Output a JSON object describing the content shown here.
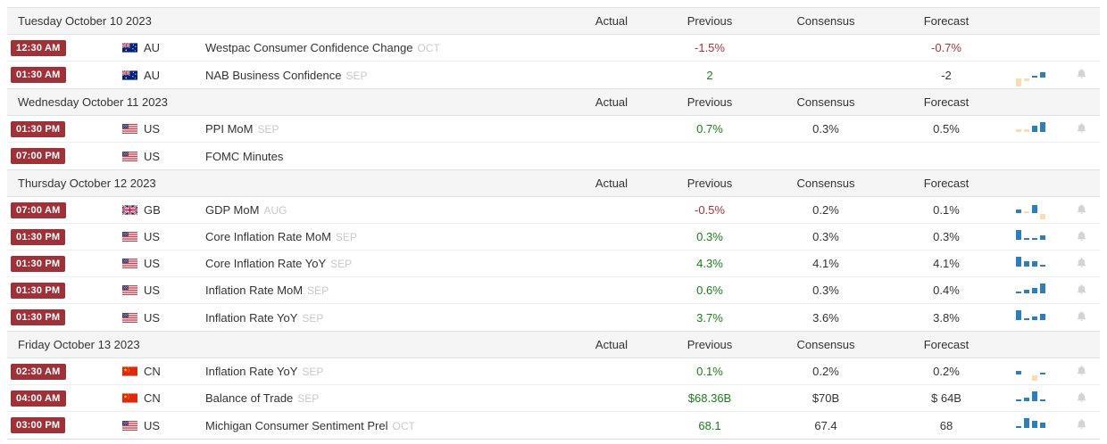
{
  "columns": {
    "actual": "Actual",
    "previous": "Previous",
    "consensus": "Consensus",
    "forecast": "Forecast"
  },
  "colors": {
    "time_badge": "#9e3238",
    "value_positive": "#1a7d1a",
    "value_negative": "#aa3337",
    "spark_blue": "#2d7fb8",
    "spark_orange": "#f8dcb2"
  },
  "icons": {
    "bell": "bell-icon",
    "flags": [
      "au-flag-icon",
      "us-flag-icon",
      "gb-flag-icon",
      "cn-flag-icon"
    ]
  },
  "sections": [
    {
      "date": "Tuesday October 10 2023",
      "rows": [
        {
          "time": "12:30 AM",
          "country": "AU",
          "flag": "au",
          "event": "Westpac Consumer Confidence Change",
          "period": "OCT",
          "actual": "",
          "previous": {
            "text": "-1.5%",
            "tone": "red"
          },
          "consensus": "",
          "forecast": {
            "text": "-0.7%",
            "tone": "red"
          },
          "spark": null,
          "bell": false
        },
        {
          "time": "01:30 AM",
          "country": "AU",
          "flag": "au",
          "event": "NAB Business Confidence",
          "period": "SEP",
          "actual": "",
          "previous": {
            "text": "2",
            "tone": "green"
          },
          "consensus": "",
          "forecast": {
            "text": "-2",
            "tone": "neutral"
          },
          "spark": {
            "bars": [
              {
                "v": -0.8,
                "c": "o"
              },
              {
                "v": -0.3,
                "c": "o"
              },
              {
                "v": 0.12,
                "c": "b"
              },
              {
                "v": 0.5,
                "c": "b"
              }
            ]
          },
          "bell": true
        }
      ]
    },
    {
      "date": "Wednesday October 11 2023",
      "rows": [
        {
          "time": "01:30 PM",
          "country": "US",
          "flag": "us",
          "event": "PPI MoM",
          "period": "SEP",
          "actual": "",
          "previous": {
            "text": "0.7%",
            "tone": "green"
          },
          "consensus": "0.3%",
          "forecast": {
            "text": "0.5%",
            "tone": "neutral"
          },
          "spark": {
            "bars": [
              {
                "v": 0.25,
                "c": "o"
              },
              {
                "v": 0.3,
                "c": "o"
              },
              {
                "v": 0.6,
                "c": "b"
              },
              {
                "v": 1,
                "c": "b"
              }
            ]
          },
          "bell": true
        },
        {
          "time": "07:00 PM",
          "country": "US",
          "flag": "us",
          "event": "FOMC Minutes",
          "period": "",
          "actual": "",
          "previous": {
            "text": "",
            "tone": "neutral"
          },
          "consensus": "",
          "forecast": {
            "text": "",
            "tone": "neutral"
          },
          "spark": null,
          "bell": false
        }
      ]
    },
    {
      "date": "Thursday October 12 2023",
      "rows": [
        {
          "time": "07:00 AM",
          "country": "GB",
          "flag": "gb",
          "event": "GDP MoM",
          "period": "AUG",
          "actual": "",
          "previous": {
            "text": "-0.5%",
            "tone": "red"
          },
          "consensus": "0.2%",
          "forecast": {
            "text": "0.1%",
            "tone": "neutral"
          },
          "spark": {
            "bars": [
              {
                "v": 0.35,
                "c": "b"
              },
              {
                "v": 0.08,
                "c": "o"
              },
              {
                "v": 0.8,
                "c": "b"
              },
              {
                "v": -0.5,
                "c": "o"
              }
            ]
          },
          "bell": true
        },
        {
          "time": "01:30 PM",
          "country": "US",
          "flag": "us",
          "event": "Core Inflation Rate MoM",
          "period": "SEP",
          "actual": "",
          "previous": {
            "text": "0.3%",
            "tone": "green"
          },
          "consensus": "0.3%",
          "forecast": {
            "text": "0.3%",
            "tone": "neutral"
          },
          "spark": {
            "bars": [
              {
                "v": 1,
                "c": "b"
              },
              {
                "v": 0.08,
                "c": "b"
              },
              {
                "v": 0.08,
                "c": "b"
              },
              {
                "v": 0.45,
                "c": "b"
              }
            ]
          },
          "bell": true
        },
        {
          "time": "01:30 PM",
          "country": "US",
          "flag": "us",
          "event": "Core Inflation Rate YoY",
          "period": "SEP",
          "actual": "",
          "previous": {
            "text": "4.3%",
            "tone": "green"
          },
          "consensus": "4.1%",
          "forecast": {
            "text": "4.1%",
            "tone": "neutral"
          },
          "spark": {
            "bars": [
              {
                "v": 1,
                "c": "b"
              },
              {
                "v": 0.55,
                "c": "b"
              },
              {
                "v": 0.5,
                "c": "b"
              },
              {
                "v": 0.08,
                "c": "b"
              }
            ]
          },
          "bell": true
        },
        {
          "time": "01:30 PM",
          "country": "US",
          "flag": "us",
          "event": "Inflation Rate MoM",
          "period": "SEP",
          "actual": "",
          "previous": {
            "text": "0.6%",
            "tone": "green"
          },
          "consensus": "0.3%",
          "forecast": {
            "text": "0.4%",
            "tone": "neutral"
          },
          "spark": {
            "bars": [
              {
                "v": 0.15,
                "c": "b"
              },
              {
                "v": 0.35,
                "c": "b"
              },
              {
                "v": 0.5,
                "c": "b"
              },
              {
                "v": 1,
                "c": "b"
              }
            ]
          },
          "bell": true
        },
        {
          "time": "01:30 PM",
          "country": "US",
          "flag": "us",
          "event": "Inflation Rate YoY",
          "period": "SEP",
          "actual": "",
          "previous": {
            "text": "3.7%",
            "tone": "green"
          },
          "consensus": "3.6%",
          "forecast": {
            "text": "3.8%",
            "tone": "neutral"
          },
          "spark": {
            "bars": [
              {
                "v": 1,
                "c": "b"
              },
              {
                "v": 0.12,
                "c": "b"
              },
              {
                "v": 0.35,
                "c": "b"
              },
              {
                "v": 0.6,
                "c": "b"
              }
            ]
          },
          "bell": true
        }
      ]
    },
    {
      "date": "Friday October 13 2023",
      "rows": [
        {
          "time": "02:30 AM",
          "country": "CN",
          "flag": "cn",
          "event": "Inflation Rate YoY",
          "period": "SEP",
          "actual": "",
          "previous": {
            "text": "0.1%",
            "tone": "green"
          },
          "consensus": "0.2%",
          "forecast": {
            "text": "0.2%",
            "tone": "neutral"
          },
          "spark": {
            "bars": [
              {
                "v": 0.35,
                "c": "b"
              },
              {
                "v": 0,
                "c": "b"
              },
              {
                "v": -0.5,
                "c": "o"
              },
              {
                "v": 0.18,
                "c": "b"
              }
            ]
          },
          "bell": true
        },
        {
          "time": "04:00 AM",
          "country": "CN",
          "flag": "cn",
          "event": "Balance of Trade",
          "period": "SEP",
          "actual": "",
          "previous": {
            "text": "$68.36B",
            "tone": "green"
          },
          "consensus": "$70B",
          "forecast": {
            "text": "$ 64B",
            "tone": "neutral"
          },
          "spark": {
            "bars": [
              {
                "v": 0.1,
                "c": "b"
              },
              {
                "v": 0.35,
                "c": "b"
              },
              {
                "v": 1,
                "c": "b"
              },
              {
                "v": 0.1,
                "c": "b"
              }
            ]
          },
          "bell": true
        },
        {
          "time": "03:00 PM",
          "country": "US",
          "flag": "us",
          "event": "Michigan Consumer Sentiment Prel",
          "period": "OCT",
          "actual": "",
          "previous": {
            "text": "68.1",
            "tone": "green"
          },
          "consensus": "67.4",
          "forecast": {
            "text": "68",
            "tone": "neutral"
          },
          "spark": {
            "bars": [
              {
                "v": 0.1,
                "c": "b"
              },
              {
                "v": 1,
                "c": "b"
              },
              {
                "v": 0.7,
                "c": "b"
              },
              {
                "v": 0.55,
                "c": "b"
              }
            ]
          },
          "bell": true
        }
      ]
    }
  ]
}
